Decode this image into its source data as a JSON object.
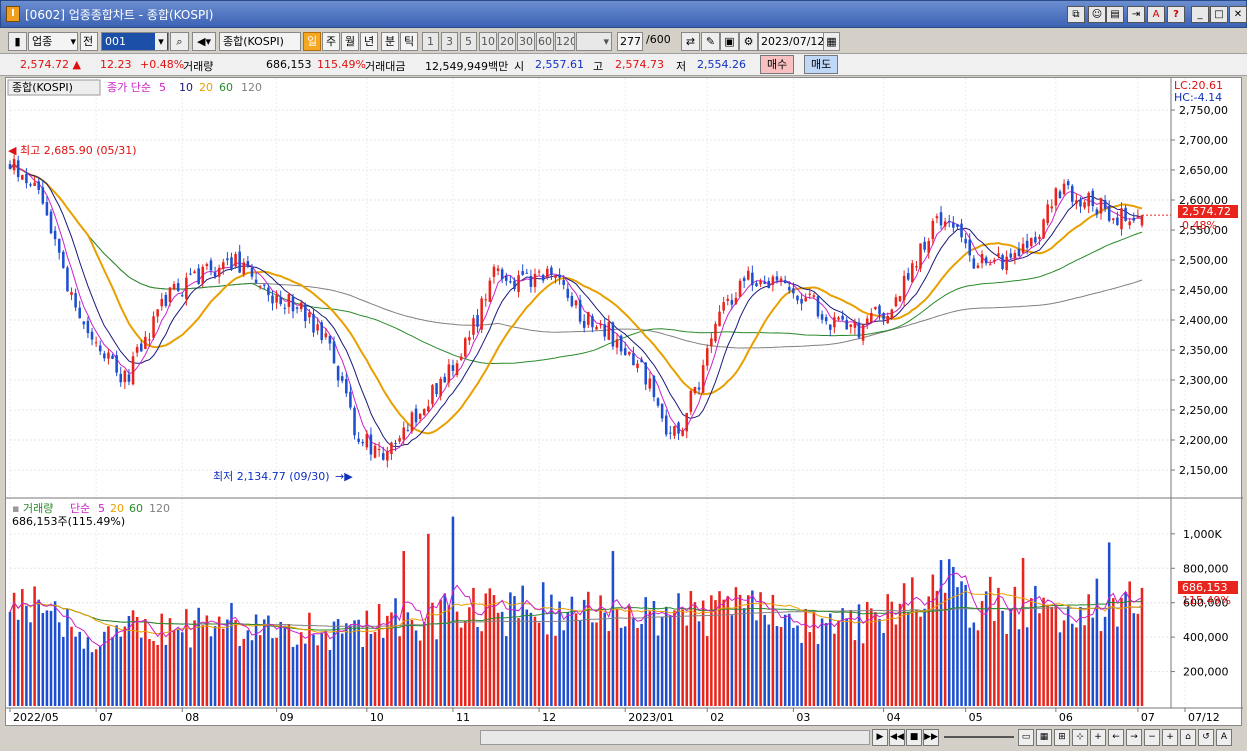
{
  "window": {
    "title": "[0602] 업종종합차트 - 종합(KOSPI)",
    "app_icon": "I",
    "title_icons": [
      "link-icon",
      "user-icon",
      "copy-icon",
      "pin-icon",
      "font-icon",
      "help-icon",
      "minimize-icon",
      "restore-icon",
      "close-icon"
    ]
  },
  "toolbar": {
    "sector_select": "업종",
    "all_btn": "전",
    "code_value": "001",
    "index_name": "종합(KOSPI)",
    "period_tabs": [
      "일",
      "주",
      "월",
      "년",
      "분",
      "틱"
    ],
    "active_period": "일",
    "interval_btns": [
      "1",
      "3",
      "5",
      "10",
      "20",
      "30",
      "60",
      "120"
    ],
    "count_value": "277",
    "count_total": "/600",
    "date_value": "2023/07/12"
  },
  "quote": {
    "price": "2,574.72",
    "change": "12.23",
    "change_pct": "+0.48%",
    "volume_label": "거래량",
    "volume": "686,153",
    "volume_pct": "115.49%",
    "amount_label": "거래대금",
    "amount": "12,549,949백만",
    "open_label": "시",
    "open": "2,557.61",
    "high_label": "고",
    "high": "2,574.73",
    "low_label": "저",
    "low": "2,554.26",
    "buy_btn": "매수",
    "sell_btn": "매도"
  },
  "price_panel": {
    "name": "종합(KOSPI)",
    "ma_label": "종가 단순",
    "ma_periods": [
      "5",
      "10",
      "20",
      "60",
      "120"
    ],
    "lc_label": "LC:20.61",
    "hc_label": "HC:-4.14",
    "high_note": "최고 2,685.90 (05/31)",
    "low_note": "최저 2,134.77 (09/30)",
    "current_tag": "2,574.72",
    "current_pct": "0.48%"
  },
  "volume_panel": {
    "name": "거래량",
    "ma_label": "단순",
    "ma_periods": [
      "5",
      "20",
      "60",
      "120"
    ],
    "current_text": "686,153주(115.49%)",
    "current_tag": "686,153",
    "current_pct": "115.49%"
  },
  "colors": {
    "up": "#e8241c",
    "down": "#1e4fd0",
    "ma5": "#cc22cc",
    "ma10": "#1a1a7a",
    "ma20": "#e8a000",
    "ma60": "#2a8a2a",
    "ma120": "#808080"
  },
  "chart_data": {
    "type": "candlestick",
    "title": "종합(KOSPI)",
    "period": "daily",
    "y_ticks": [
      "2,750,00",
      "2,700,00",
      "2,650,00",
      "2,600,00",
      "2,550,00",
      "2,500,00",
      "2,450,00",
      "2,400,00",
      "2,350,00",
      "2,300,00",
      "2,250,00",
      "2,200,00",
      "2,150,00"
    ],
    "ylim": [
      2120,
      2770
    ],
    "volume_ticks": [
      "1,000K",
      "800,000",
      "600,000",
      "400,000",
      "200,000"
    ],
    "volume_ylim": [
      0,
      1150
    ],
    "x_labels": [
      "2022/05",
      "07",
      "08",
      "09",
      "10",
      "11",
      "12",
      "2023/01",
      "02",
      "03",
      "04",
      "05",
      "06",
      "07",
      "07/12"
    ],
    "close_anchors": [
      [
        0,
        2660
      ],
      [
        8,
        2600
      ],
      [
        14,
        2450
      ],
      [
        22,
        2360
      ],
      [
        28,
        2300
      ],
      [
        38,
        2440
      ],
      [
        48,
        2480
      ],
      [
        54,
        2500
      ],
      [
        62,
        2450
      ],
      [
        70,
        2420
      ],
      [
        78,
        2360
      ],
      [
        85,
        2200
      ],
      [
        92,
        2180
      ],
      [
        100,
        2250
      ],
      [
        108,
        2320
      ],
      [
        114,
        2400
      ],
      [
        118,
        2480
      ],
      [
        124,
        2460
      ],
      [
        132,
        2480
      ],
      [
        140,
        2400
      ],
      [
        146,
        2380
      ],
      [
        150,
        2340
      ],
      [
        156,
        2300
      ],
      [
        160,
        2220
      ],
      [
        164,
        2230
      ],
      [
        168,
        2300
      ],
      [
        174,
        2420
      ],
      [
        180,
        2470
      ],
      [
        186,
        2470
      ],
      [
        194,
        2440
      ],
      [
        200,
        2400
      ],
      [
        204,
        2380
      ],
      [
        208,
        2390
      ],
      [
        214,
        2420
      ],
      [
        218,
        2460
      ],
      [
        222,
        2520
      ],
      [
        226,
        2560
      ],
      [
        230,
        2560
      ],
      [
        234,
        2500
      ],
      [
        240,
        2500
      ],
      [
        244,
        2490
      ],
      [
        250,
        2540
      ],
      [
        256,
        2620
      ],
      [
        262,
        2600
      ],
      [
        268,
        2580
      ],
      [
        272,
        2570
      ],
      [
        276,
        2575
      ]
    ],
    "volume_anchors": [
      [
        0,
        650
      ],
      [
        20,
        420
      ],
      [
        40,
        470
      ],
      [
        60,
        500
      ],
      [
        80,
        440
      ],
      [
        98,
        520
      ],
      [
        110,
        570
      ],
      [
        130,
        580
      ],
      [
        145,
        520
      ],
      [
        160,
        540
      ],
      [
        180,
        560
      ],
      [
        200,
        470
      ],
      [
        210,
        490
      ],
      [
        220,
        600
      ],
      [
        226,
        720
      ],
      [
        234,
        640
      ],
      [
        240,
        600
      ],
      [
        250,
        560
      ],
      [
        260,
        590
      ],
      [
        276,
        640
      ]
    ],
    "volume_spikes": [
      [
        96,
        900
      ],
      [
        102,
        1000
      ],
      [
        108,
        1100
      ],
      [
        147,
        900
      ],
      [
        268,
        950
      ],
      [
        247,
        860
      ]
    ],
    "last_volume_k": 686,
    "high": {
      "value": 2685.9,
      "date": "05/31"
    },
    "low": {
      "value": 2134.77,
      "date": "09/30"
    }
  }
}
